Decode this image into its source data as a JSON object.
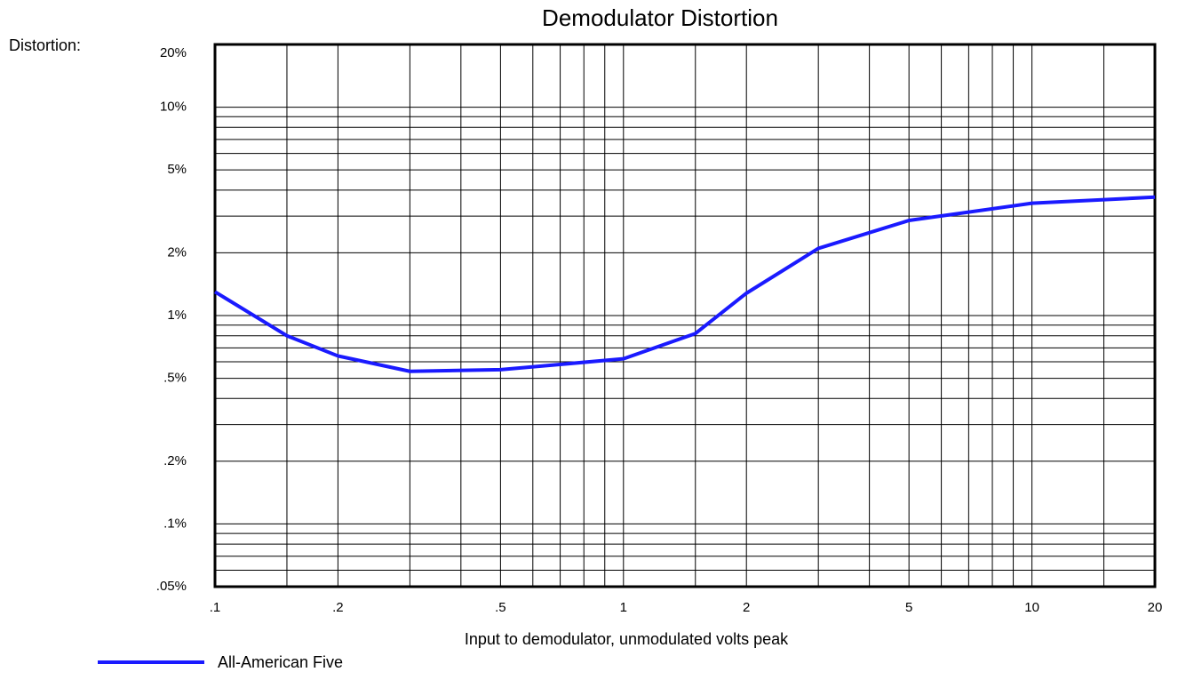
{
  "chart_data": {
    "type": "line",
    "title": "Demodulator Distortion",
    "y_label": "Distortion:",
    "x_label": "Input to demodulator, unmodulated volts peak",
    "log_x": true,
    "log_y": true,
    "grid": true,
    "x": [
      0.1,
      0.15,
      0.2,
      0.3,
      0.5,
      1,
      1.5,
      2,
      3,
      5,
      10,
      20
    ],
    "series": [
      {
        "name": "All-American Five",
        "color": "#1a1aff",
        "values": [
          1.3,
          0.8,
          0.64,
          0.54,
          0.55,
          0.62,
          0.82,
          1.28,
          2.1,
          2.86,
          3.46,
          3.7
        ]
      }
    ],
    "xlim": [
      0.1,
      20
    ],
    "ylim": [
      0.05,
      20
    ],
    "xticks": [
      {
        "value": 0.1,
        "label": ".1"
      },
      {
        "value": 0.2,
        "label": ".2"
      },
      {
        "value": 0.5,
        "label": ".5"
      },
      1,
      2,
      5,
      10,
      20
    ],
    "yticks": [
      {
        "value": 0.05,
        "label": ".05%"
      },
      {
        "value": 0.1,
        "label": ".1%"
      },
      {
        "value": 0.2,
        "label": ".2%"
      },
      {
        "value": 0.5,
        "label": ".5%"
      },
      {
        "value": 1,
        "label": "1%"
      },
      {
        "value": 2,
        "label": "2%"
      },
      {
        "value": 5,
        "label": "5%"
      },
      {
        "value": 10,
        "label": "10%"
      },
      {
        "value": 20,
        "label": "20%"
      }
    ],
    "xgrid": [
      0.15,
      0.3,
      0.4,
      0.6,
      0.7,
      0.8,
      0.9,
      1.5,
      3,
      4,
      6,
      7,
      8,
      9,
      15
    ],
    "ygrid": [
      0.06,
      0.07,
      0.08,
      0.09,
      0.3,
      0.4,
      0.6,
      0.7,
      0.8,
      0.9,
      3,
      4,
      6,
      7,
      8,
      9
    ]
  }
}
